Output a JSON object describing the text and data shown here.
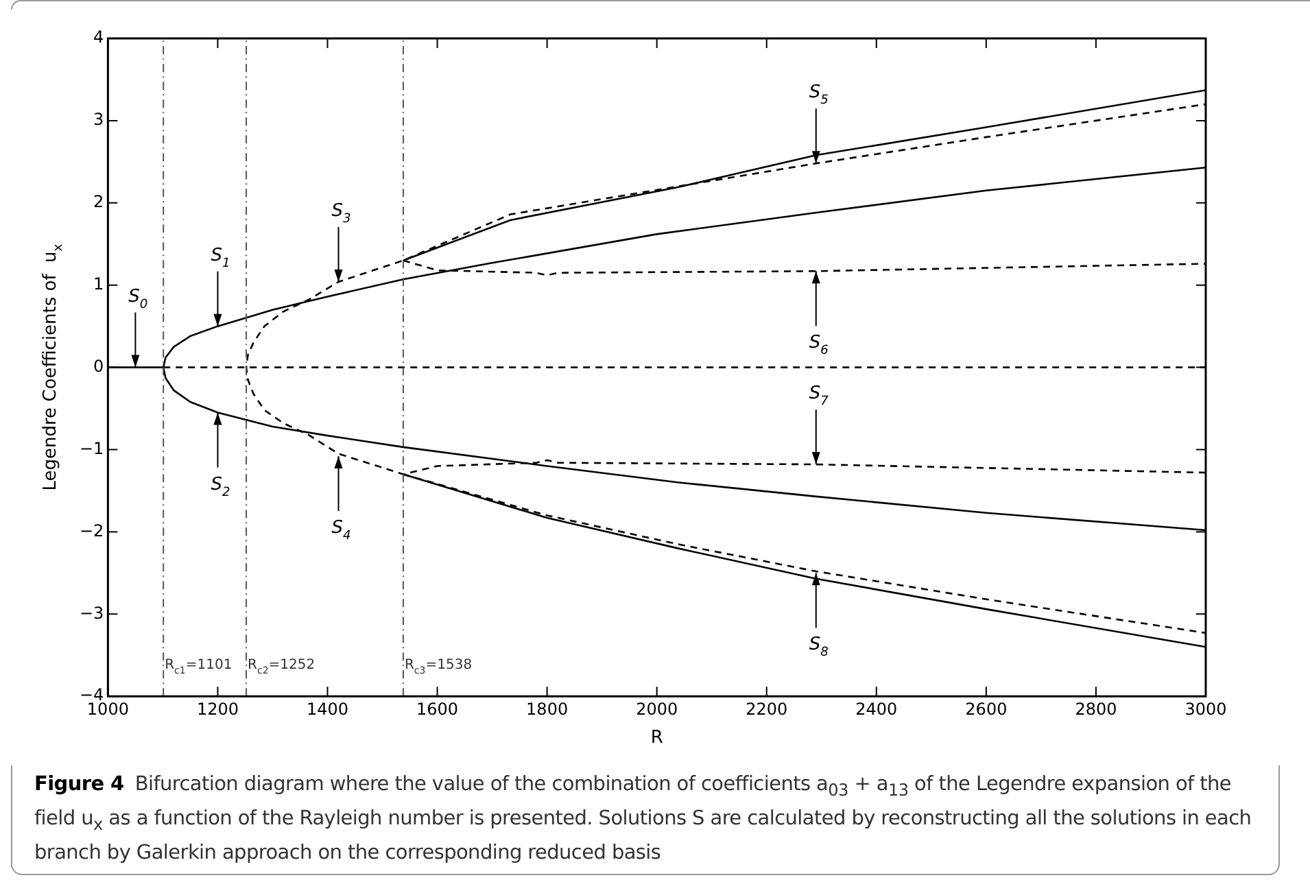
{
  "chart_data": {
    "type": "line",
    "title": "Figure 4",
    "xlabel": "R",
    "ylabel": "Legendre Coefficients of  u$_{x}$",
    "xlim": [
      1000,
      3000
    ],
    "xticks": [
      1000,
      1200,
      1400,
      1600,
      1800,
      2000,
      2200,
      2400,
      2600,
      2800,
      3000
    ],
    "ylim": [
      -4,
      4
    ],
    "yticks": [
      -4,
      -3,
      -2,
      -1,
      0,
      1,
      2,
      3,
      4
    ],
    "grid": false,
    "legend": false,
    "marker": "none",
    "series": [
      {
        "color": "#000000",
        "line_style": "solid",
        "x": [
          1000,
          1101
        ],
        "values": [
          0,
          0
        ]
      },
      {
        "color": "#000000",
        "line_style": "dashed",
        "x": [
          1101,
          3000
        ],
        "values": [
          0,
          0
        ]
      },
      {
        "color": "#000000",
        "line_style": "solid",
        "x": [
          3000,
          2600,
          2290,
          2040,
          1800,
          1538,
          1400,
          1300,
          1200,
          1150,
          1120,
          1105,
          1101,
          1105,
          1120,
          1150,
          1200,
          1300,
          1400,
          1538,
          1700,
          2000,
          2300,
          2600,
          3000
        ],
        "values": [
          -1.98,
          -1.77,
          -1.57,
          -1.4,
          -1.2,
          -0.97,
          -0.83,
          -0.72,
          -0.55,
          -0.42,
          -0.28,
          -0.13,
          0,
          0.12,
          0.25,
          0.38,
          0.5,
          0.7,
          0.86,
          1.07,
          1.27,
          1.62,
          1.89,
          2.15,
          2.43
        ]
      },
      {
        "color": "#000000",
        "line_style": "dashed",
        "x": [
          3000,
          2290,
          1820,
          1800,
          1780,
          1600,
          1538,
          1420,
          1365,
          1320,
          1285,
          1265,
          1255,
          1252,
          1255,
          1265,
          1285,
          1320,
          1365,
          1420,
          1538,
          1733,
          2038,
          2290,
          2600,
          3000
        ],
        "values": [
          -1.28,
          -1.18,
          -1.16,
          -1.13,
          -1.16,
          -1.2,
          -1.3,
          -1.05,
          -0.82,
          -0.68,
          -0.52,
          -0.32,
          -0.15,
          0,
          0.15,
          0.3,
          0.5,
          0.68,
          0.82,
          1.04,
          1.3,
          1.86,
          2.2,
          2.48,
          2.8,
          3.2
        ]
      },
      {
        "color": "#000000",
        "line_style": "solid",
        "x": [
          1538,
          1733,
          2038,
          2290,
          2600,
          3000
        ],
        "values": [
          1.3,
          1.79,
          2.19,
          2.58,
          2.92,
          3.37
        ]
      },
      {
        "color": "#000000",
        "line_style": "dashed",
        "x": [
          1538,
          1600,
          1780,
          1800,
          1820,
          2290,
          3000
        ],
        "values": [
          1.3,
          1.18,
          1.15,
          1.12,
          1.15,
          1.17,
          1.26
        ]
      },
      {
        "color": "#000000",
        "line_style": "solid",
        "x": [
          1538,
          1800,
          2038,
          2290,
          2600,
          3000
        ],
        "values": [
          -1.3,
          -1.83,
          -2.2,
          -2.57,
          -2.94,
          -3.4
        ]
      },
      {
        "color": "#000000",
        "line_style": "dashed",
        "x": [
          1538,
          1800,
          2038,
          2290,
          2600,
          3000
        ],
        "values": [
          -1.3,
          -1.8,
          -2.15,
          -2.48,
          -2.82,
          -3.23
        ]
      }
    ],
    "ref_lines": [
      {
        "axis": "x",
        "value": 1101,
        "label": "R$_{c1}$=1101",
        "line_style": "dashed"
      },
      {
        "axis": "x",
        "value": 1252,
        "label": "R$_{c2}$=1252",
        "line_style": "dashed"
      },
      {
        "axis": "x",
        "value": 1538,
        "label": "R$_{c3}$=1538",
        "line_style": "dashed"
      }
    ],
    "annotations": [
      {
        "text": "S$_{0}$",
        "x": 1050,
        "y": 0
      },
      {
        "text": "S$_{1}$",
        "x": 1200,
        "y": 0.5
      },
      {
        "text": "S$_{2}$",
        "x": 1200,
        "y": -0.55
      },
      {
        "text": "S$_{3}$",
        "x": 1420,
        "y": 1.04
      },
      {
        "text": "S$_{4}$",
        "x": 1420,
        "y": -1.08
      },
      {
        "text": "S$_{5}$",
        "x": 2290,
        "y": 2.48
      },
      {
        "text": "S$_{6}$",
        "x": 2290,
        "y": 1.17
      },
      {
        "text": "S$_{7}$",
        "x": 2290,
        "y": -1.18
      },
      {
        "text": "S$_{8}$",
        "x": 2290,
        "y": -2.5
      },
      "Bifurcation diagram where the value of the combination of coefficients a$_{03}$ + a$_{13}$ of the Legendre expansion of the field u$_{x}$ as a function of the Rayleigh number is presented. Solutions S are calculated by reconstructing all the solutions in each branch by Galerkin approach on the corresponding reduced basis"
    ]
  }
}
